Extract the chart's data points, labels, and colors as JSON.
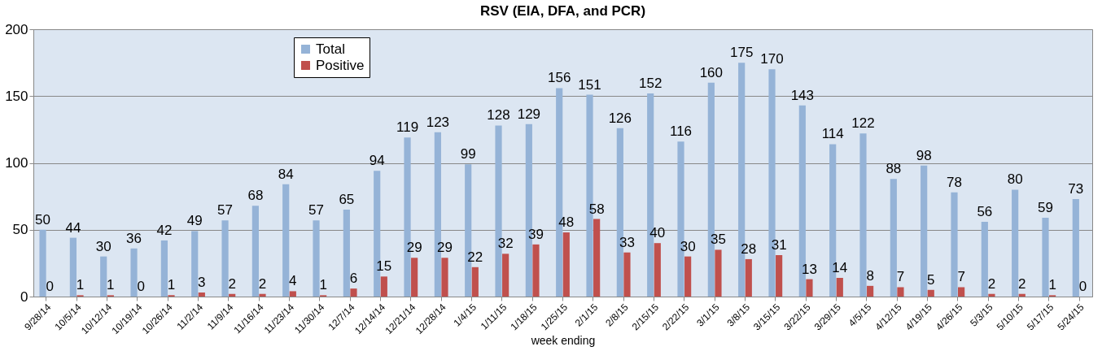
{
  "chart_data": {
    "type": "bar",
    "title": "RSV (EIA, DFA, and PCR)",
    "xlabel": "week ending",
    "categories": [
      "9/28/14",
      "10/5/14",
      "10/12/14",
      "10/19/14",
      "10/26/14",
      "11/2/14",
      "11/9/14",
      "11/16/14",
      "11/23/14",
      "11/30/14",
      "12/7/14",
      "12/14/14",
      "12/21/14",
      "12/28/14",
      "1/4/15",
      "1/11/15",
      "1/18/15",
      "1/25/15",
      "2/1/15",
      "2/8/15",
      "2/15/15",
      "2/22/15",
      "3/1/15",
      "3/8/15",
      "3/15/15",
      "3/22/15",
      "3/29/15",
      "4/5/15",
      "4/12/15",
      "4/19/15",
      "4/26/15",
      "5/3/15",
      "5/10/15",
      "5/17/15",
      "5/24/15"
    ],
    "series": [
      {
        "name": "Total",
        "color": "#95b3d7",
        "values": [
          50,
          44,
          30,
          36,
          42,
          49,
          57,
          68,
          84,
          57,
          65,
          94,
          119,
          123,
          99,
          128,
          129,
          156,
          151,
          126,
          152,
          116,
          160,
          175,
          170,
          143,
          114,
          122,
          88,
          98,
          78,
          56,
          80,
          59,
          73
        ]
      },
      {
        "name": "Positive",
        "color": "#c0504d",
        "values": [
          0,
          1,
          1,
          0,
          1,
          3,
          2,
          2,
          4,
          1,
          6,
          15,
          29,
          29,
          22,
          32,
          39,
          48,
          58,
          33,
          40,
          30,
          35,
          28,
          31,
          13,
          14,
          8,
          7,
          5,
          7,
          2,
          2,
          1,
          0
        ]
      }
    ],
    "ylim": [
      0,
      200
    ],
    "yticks": [
      0,
      50,
      100,
      150,
      200
    ],
    "grid": "y",
    "legend": "top left",
    "data_labels": true
  }
}
